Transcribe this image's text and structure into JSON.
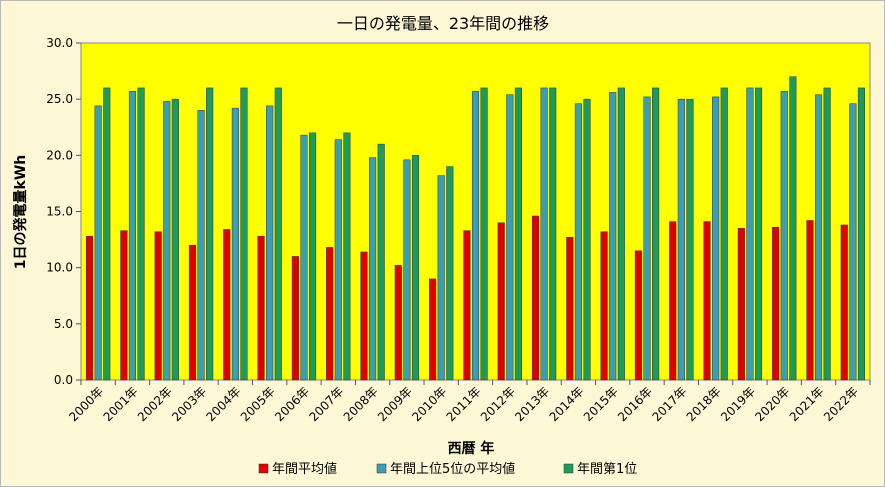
{
  "chart_data": {
    "type": "bar",
    "title": "一日の発電量、23年間の推移",
    "xlabel": "西暦 年",
    "ylabel": "1日の発電量kWh",
    "ylim": [
      0,
      30
    ],
    "yticks": [
      "0.0",
      "5.0",
      "10.0",
      "15.0",
      "20.0",
      "25.0",
      "30.0"
    ],
    "grid": false,
    "legend_position": "bottom",
    "plot_background": "#ffff00",
    "categories": [
      "2000年",
      "2001年",
      "2002年",
      "2003年",
      "2004年",
      "2005年",
      "2006年",
      "2007年",
      "2008年",
      "2009年",
      "2010年",
      "2011年",
      "2012年",
      "2013年",
      "2014年",
      "2015年",
      "2016年",
      "2017年",
      "2018年",
      "2019年",
      "2020年",
      "2021年",
      "2022年"
    ],
    "series": [
      {
        "name": "年間平均値",
        "color": "#e00000",
        "values": [
          12.8,
          13.3,
          13.2,
          12.0,
          13.4,
          12.8,
          11.0,
          11.8,
          11.4,
          10.2,
          9.0,
          13.3,
          14.0,
          14.6,
          12.7,
          13.2,
          11.5,
          14.1,
          14.1,
          13.5,
          13.6,
          14.2,
          13.8
        ]
      },
      {
        "name": "年間上位5位の平均値",
        "color": "#3a9fb5",
        "values": [
          24.4,
          25.7,
          24.8,
          24.0,
          24.2,
          24.4,
          21.8,
          21.4,
          19.8,
          19.6,
          18.2,
          25.7,
          25.4,
          26.0,
          24.6,
          25.6,
          25.2,
          25.0,
          25.2,
          26.0,
          25.7,
          25.4,
          24.6
        ]
      },
      {
        "name": "年間第1位",
        "color": "#1e9a5a",
        "values": [
          26.0,
          26.0,
          25.0,
          26.0,
          26.0,
          26.0,
          22.0,
          22.0,
          21.0,
          20.0,
          19.0,
          26.0,
          26.0,
          26.0,
          25.0,
          26.0,
          26.0,
          25.0,
          26.0,
          26.0,
          27.0,
          26.0,
          26.0
        ]
      }
    ]
  }
}
